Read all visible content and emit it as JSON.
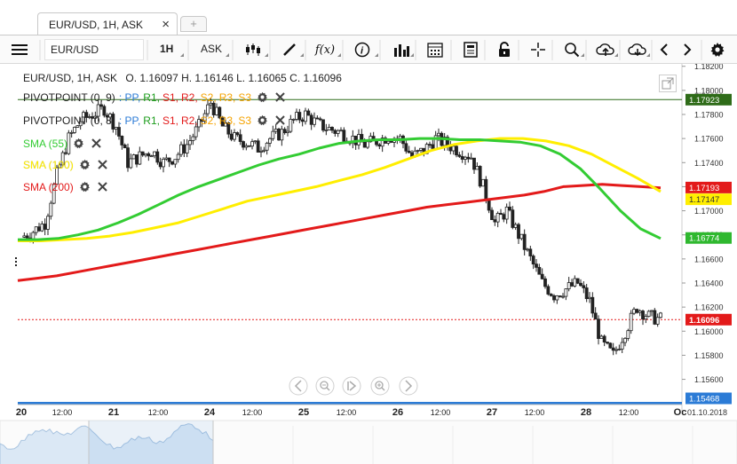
{
  "tab": {
    "title": "EUR/USD, 1H, ASK",
    "close": "×",
    "add": "+"
  },
  "toolbar": {
    "symbol": "EUR/USD",
    "period": "1H",
    "side": "ASK",
    "fx_label": "f(x)",
    "icons": [
      "menu-icon",
      "candlestick-icon",
      "draw-line-icon",
      "function-icon",
      "info-icon",
      "volume-bars-icon",
      "calendar-icon",
      "report-icon",
      "lock-icon",
      "crosshair-icon",
      "zoom-icon",
      "cloud-upload-icon",
      "cloud-download-icon",
      "chevron-left-icon",
      "chevron-right-icon",
      "gear-icon"
    ]
  },
  "header": {
    "instrument": "EUR/USD, 1H, ASK",
    "ohlc": "O. 1.16097 H. 1.16146 L. 1.16065 C. 1.16096"
  },
  "indicators": [
    {
      "name": "PIVOTPOINT (0, 9)",
      "levels": [
        ": PP,",
        "R1,",
        "S1,",
        "R2,",
        "S2,",
        "R3,",
        "S3"
      ]
    },
    {
      "name": "PIVOTPOINT (0, 8)",
      "levels": [
        ": PP,",
        "R1,",
        "S1,",
        "R2,",
        "S2,",
        "R3,",
        "S3"
      ]
    },
    {
      "name": "SMA (55)",
      "color": "#33cc33"
    },
    {
      "name": "SMA (100)",
      "color": "#ffee00"
    },
    {
      "name": "SMA (200)",
      "color": "#e31a1a"
    }
  ],
  "level_colors": [
    "#2b7bd6",
    "#1b9c1b",
    "#e31a1a",
    "#e31a1a",
    "#f5a300",
    "#f5a300",
    "#f5a300"
  ],
  "price_labels": [
    {
      "text": "1.17923",
      "bg": "#2e6b18"
    },
    {
      "text": "1.17193",
      "bg": "#e31a1a"
    },
    {
      "text": "1.17147",
      "bg": "#ffee00"
    },
    {
      "text": "1.16774",
      "bg": "#2fb82f"
    },
    {
      "text": "1.16096",
      "bg": "#e31a1a"
    },
    {
      "text": "1.15468",
      "bg": "#2b7bd6"
    }
  ],
  "chart_data": {
    "type": "candlestick",
    "instrument": "EUR/USD",
    "timeframe": "1H",
    "ylim": [
      1.1542,
      1.1822
    ],
    "y_ticks": [
      "1.18200",
      "1.18000",
      "1.17800",
      "1.17600",
      "1.17400",
      "1.17200",
      "1.17000",
      "1.16800",
      "1.16600",
      "1.16400",
      "1.16200",
      "1.16000",
      "1.15800",
      "1.15600"
    ],
    "x_ticks": [
      "20",
      "12:00",
      "21",
      "12:00",
      "24",
      "12:00",
      "25",
      "12:00",
      "26",
      "12:00",
      "27",
      "12:00",
      "28",
      "12:00",
      "Oc"
    ],
    "date_label": "01.10.2018",
    "close_series": [
      1.1678,
      1.1683,
      1.169,
      1.173,
      1.176,
      1.1775,
      1.178,
      1.1785,
      1.177,
      1.174,
      1.1745,
      1.175,
      1.174,
      1.1745,
      1.1755,
      1.177,
      1.179,
      1.177,
      1.176,
      1.1757,
      1.1752,
      1.176,
      1.1765,
      1.1775,
      1.178,
      1.1772,
      1.1768,
      1.1765,
      1.176,
      1.1755,
      1.1758,
      1.1762,
      1.176,
      1.1745,
      1.175,
      1.176,
      1.1755,
      1.175,
      1.1745,
      1.172,
      1.169,
      1.17,
      1.168,
      1.166,
      1.164,
      1.163,
      1.1635,
      1.164,
      1.1625,
      1.159,
      1.158,
      1.16,
      1.162,
      1.1612,
      1.161
    ],
    "sma55": [
      1.1676,
      1.1676,
      1.1677,
      1.168,
      1.1684,
      1.169,
      1.1697,
      1.1705,
      1.1713,
      1.172,
      1.1726,
      1.1732,
      1.1738,
      1.1743,
      1.1747,
      1.1752,
      1.1756,
      1.1758,
      1.1759,
      1.1759,
      1.176,
      1.176,
      1.1759,
      1.1759,
      1.1758,
      1.1757,
      1.1754,
      1.1747,
      1.1735,
      1.1718,
      1.17,
      1.1685,
      1.1677
    ],
    "sma100": [
      1.1675,
      1.1675,
      1.1676,
      1.1677,
      1.1679,
      1.1682,
      1.1686,
      1.169,
      1.1696,
      1.1702,
      1.1708,
      1.1712,
      1.1716,
      1.172,
      1.1725,
      1.173,
      1.1736,
      1.1743,
      1.175,
      1.1755,
      1.1758,
      1.176,
      1.176,
      1.1758,
      1.1754,
      1.1747,
      1.1737,
      1.1727,
      1.1716
    ],
    "sma200": [
      1.1642,
      1.1644,
      1.1646,
      1.1649,
      1.1652,
      1.1655,
      1.1658,
      1.1661,
      1.1664,
      1.1667,
      1.167,
      1.1673,
      1.1676,
      1.1679,
      1.1682,
      1.1685,
      1.1688,
      1.1691,
      1.1694,
      1.1697,
      1.17,
      1.1703,
      1.1705,
      1.1707,
      1.1709,
      1.1711,
      1.1713,
      1.1716,
      1.172,
      1.1721,
      1.1722,
      1.1721,
      1.172,
      1.1719
    ],
    "horizontal_lines": [
      {
        "price": 1.17923,
        "color": "#2e6b18"
      },
      {
        "price": 1.16096,
        "color": "#e31a1a",
        "dashed": true
      }
    ]
  }
}
